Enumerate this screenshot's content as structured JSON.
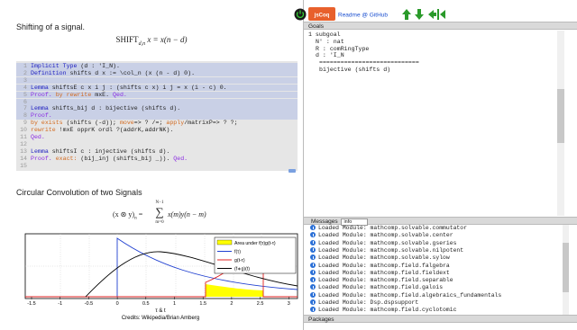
{
  "left": {
    "section1": "Shifting of a signal.",
    "formula1": {
      "op": "SHIFT",
      "sub": "d,n",
      "expr": "x = x(n − d)"
    },
    "code": [
      {
        "n": "1",
        "tokens": [
          {
            "text": "Implicit Type",
            "color": "#2020c0"
          },
          {
            "text": " (d : 'I_N).",
            "color": "#222222"
          }
        ]
      },
      {
        "n": "2",
        "tokens": [
          {
            "text": "Definition",
            "color": "#2020c0"
          },
          {
            "text": " shifts d x := \\col_n (x (n - d) 0).",
            "color": "#222222"
          }
        ]
      },
      {
        "n": "3",
        "tokens": []
      },
      {
        "n": "4",
        "tokens": [
          {
            "text": "Lemma",
            "color": "#2020c0"
          },
          {
            "text": " shiftsE c x i j : (shifts c x) i j = x (i - c) 0.",
            "color": "#222222"
          }
        ]
      },
      {
        "n": "5",
        "tokens": [
          {
            "text": "Proof.",
            "color": "#8a2be2"
          },
          {
            "text": " by rewrite",
            "color": "#d2691e"
          },
          {
            "text": " mxE. ",
            "color": "#222222"
          },
          {
            "text": "Qed.",
            "color": "#8a2be2"
          }
        ]
      },
      {
        "n": "6",
        "tokens": []
      },
      {
        "n": "7",
        "tokens": [
          {
            "text": "Lemma",
            "color": "#2020c0"
          },
          {
            "text": " shifts_bij d : bijective (shifts d).",
            "color": "#222222"
          }
        ]
      },
      {
        "n": "8",
        "tokens": [
          {
            "text": "Proof.",
            "color": "#8a2be2"
          }
        ]
      },
      {
        "n": "9",
        "tokens": [
          {
            "text": "by exists",
            "color": "#d2691e"
          },
          {
            "text": " (shifts (-d)); ",
            "color": "#222222"
          },
          {
            "text": "move",
            "color": "#d2691e"
          },
          {
            "text": "=> ? /=; ",
            "color": "#222222"
          },
          {
            "text": "apply",
            "color": "#d2691e"
          },
          {
            "text": "/matrixP=> ? ?;",
            "color": "#222222"
          }
        ]
      },
      {
        "n": "10",
        "tokens": [
          {
            "text": "rewrite",
            "color": "#d2691e"
          },
          {
            "text": " !mxE opprK ordl ?(addrK,addrNK).",
            "color": "#222222"
          }
        ]
      },
      {
        "n": "11",
        "tokens": [
          {
            "text": "Qed.",
            "color": "#8a2be2"
          }
        ]
      },
      {
        "n": "12",
        "tokens": []
      },
      {
        "n": "13",
        "tokens": [
          {
            "text": "Lemma",
            "color": "#2020c0"
          },
          {
            "text": " shiftsI c : injective (shifts d).",
            "color": "#222222"
          }
        ]
      },
      {
        "n": "14",
        "tokens": [
          {
            "text": "Proof.",
            "color": "#8a2be2"
          },
          {
            "text": " exact:",
            "color": "#d2691e"
          },
          {
            "text": " (bij_inj (shifts_bij _)). ",
            "color": "#222222"
          },
          {
            "text": "Qed.",
            "color": "#8a2be2"
          }
        ]
      },
      {
        "n": "15",
        "tokens": []
      }
    ],
    "section2": "Circular Convolution of two Signals",
    "formula2": {
      "lhs": "(x ⊛ y)",
      "lhs_sub": "n",
      "eq": "=",
      "sum": "∑",
      "upper": "N−1",
      "lower": "m=0",
      "rhs": "x(m)y(n − m)"
    },
    "figure": {
      "xticks": [
        "-1.5",
        "-1",
        "-0.5",
        "0",
        "0.5",
        "1",
        "1.5",
        "2",
        "2.5",
        "3"
      ],
      "xlabel": "τ & t",
      "legend": [
        "Area under f(τ)g(t-τ)",
        "f(τ)",
        "g(t-τ)",
        "(f∗g)(t)"
      ],
      "credit": "Credits: Wikipedia/Brian Amberg"
    }
  },
  "toolbar": {
    "logo": "jsCoq",
    "link": "Readme @ GitHub"
  },
  "goals": {
    "header": "Goals",
    "lines": [
      "1 subgoal",
      "N' : nat",
      "R : comRingType",
      "d : 'I_N",
      "============================",
      "bijective (shifts d)"
    ]
  },
  "messages": {
    "header": "Messages",
    "level": "info",
    "items": [
      "Loaded Module: mathcomp.solvable.commutator",
      "Loaded Module: mathcomp.solvable.center",
      "Loaded Module: mathcomp.solvable.gseries",
      "Loaded Module: mathcomp.solvable.nilpotent",
      "Loaded Module: mathcomp.solvable.sylow",
      "Loaded Module: mathcomp.field.falgebra",
      "Loaded Module: mathcomp.field.fieldext",
      "Loaded Module: mathcomp.field.separable",
      "Loaded Module: mathcomp.field.galois",
      "Loaded Module: mathcomp.field.algebraics_fundamentals",
      "Loaded Module: Dsp.dspsupport",
      "Loaded Module: mathcomp.field.cyclotomic"
    ]
  },
  "packages": {
    "header": "Packages"
  }
}
